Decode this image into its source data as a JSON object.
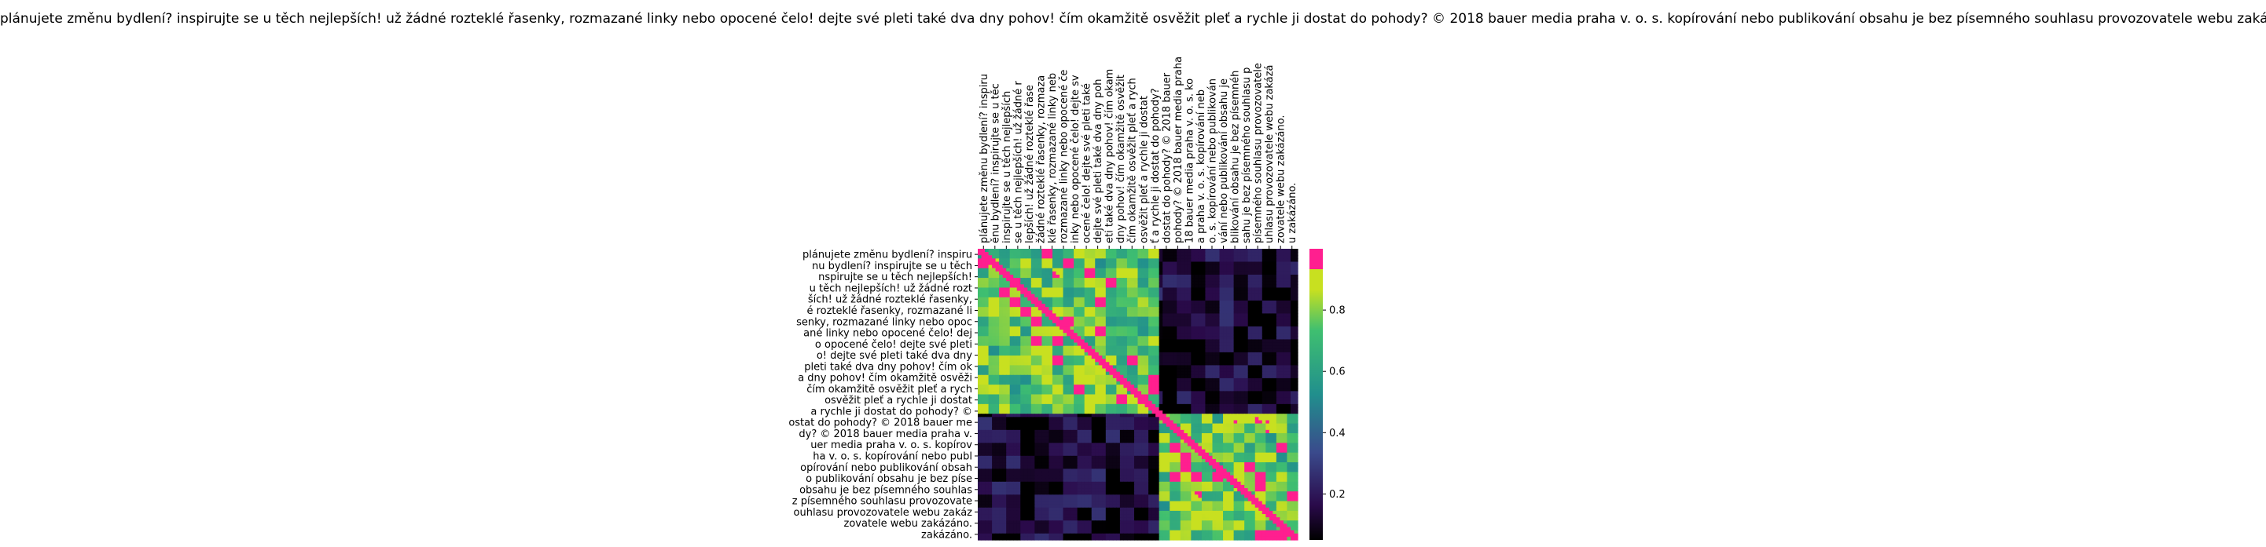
{
  "chart_data": {
    "type": "heatmap",
    "title": "plánujete změnu bydlení? inspirujte se u těch nejlepších! už žádné rozteklé řasenky, rozmazané linky nebo opocené čelo! dejte své pleti také dva dny pohov! čím okamžitě osvěžit pleť a rychle ji dostat do pohody? © 2018 bauer media praha v. o. s. kopírování nebo publikování obsahu je bez písemného souhlasu provozovatele webu zakázáno.",
    "x_labels": [
      "plánujete změnu bydlení? inspiru",
      "ěnu bydlení? inspirujte se u těc",
      "inspirujte se u těch nejlepších",
      "se u těch nejlepších! už žádné r",
      "lepších! už žádné rozteklé řase",
      "žádné rozteklé řasenky, rozmaza",
      "klé řasenky, rozmazané linky neb",
      "rozmazané linky nebo opocené če",
      "inky nebo opocené čelo! dejte sv",
      "ocené čelo! dejte své pleti také",
      "dejte své pleti také dva dny poh",
      "eti také dva dny pohov! čím okam",
      "dny pohov! čím okamžitě osvěžit",
      "čím okamžitě osvěžit pleť a rych",
      "osvěžit pleť a rychle ji dostat",
      "ť a rychle ji dostat do pohody?",
      "dostat do pohody? © 2018 bauer",
      "pohody? © 2018 bauer media praha",
      "18 bauer media praha v. o. s. ko",
      "a praha v. o. s. kopírování neb",
      "o. s. kopírování nebo publikován",
      "vání nebo publikování obsahu je",
      "blikování obsahu je bez písemnéh",
      "sahu je bez písemného souhlasu p",
      "písemného souhlasu provozovatele",
      "uhlasu provozovatele webu zakázá",
      "zovatele webu zakázáno.",
      "u zakázáno."
    ],
    "y_labels": [
      "plánujete změnu bydlení? inspiru",
      "nu bydlení? inspirujte se u těch",
      "nspirujte se u těch nejlepších!",
      "u těch nejlepších! už žádné rozt",
      "ších! už žádné rozteklé řasenky,",
      "é rozteklé řasenky, rozmazané li",
      "senky, rozmazané linky nebo opoc",
      "ané linky nebo opocené čelo! dej",
      "o opocené čelo! dejte své pleti",
      "o! dejte své pleti také dva dny",
      "pleti také dva dny pohov! čím ok",
      "a dny pohov! čím okamžitě osvěži",
      "čím okamžitě osvěžit pleť a rych",
      "osvěžit pleť a rychle ji dostat",
      "a rychle ji dostat do pohody? ©",
      "ostat do pohody? © 2018 bauer me",
      "dy? © 2018 bauer media praha v.",
      "uer media praha v. o. s. kopírov",
      "ha v. o. s. kopírování nebo publ",
      "opírování nebo publikování obsah",
      "o publikování obsahu je bez píse",
      "obsahu je bez písemného souhlas",
      "z písemného souhlasu provozovate",
      "ouhlasu provozovatele webu zakáz",
      "zovatele webu zakázáno.",
      "zakázáno."
    ],
    "colorbar": {
      "ticks": [
        0.2,
        0.4,
        0.6,
        0.8
      ],
      "range": [
        0.05,
        1.0
      ]
    },
    "cluster_edges": [
      0,
      0.57,
      1
    ],
    "within_cluster_level": 0.78,
    "between_cluster_level": 0.12
  }
}
